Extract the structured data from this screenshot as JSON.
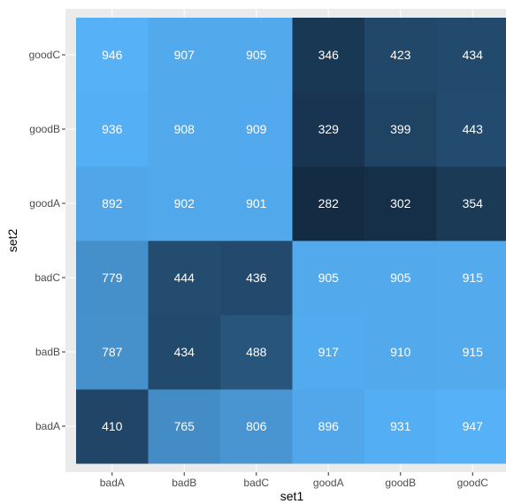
{
  "chart_data": {
    "type": "heatmap",
    "xlabel": "set1",
    "ylabel": "set2",
    "x_categories": [
      "badA",
      "badB",
      "badC",
      "goodA",
      "goodB",
      "goodC"
    ],
    "y_categories": [
      "badA",
      "badB",
      "badC",
      "goodA",
      "goodB",
      "goodC"
    ],
    "values": [
      [
        410,
        765,
        806,
        896,
        931,
        947
      ],
      [
        787,
        434,
        488,
        917,
        910,
        915
      ],
      [
        779,
        444,
        436,
        905,
        905,
        915
      ],
      [
        892,
        902,
        901,
        282,
        302,
        354
      ],
      [
        936,
        908,
        909,
        329,
        399,
        443
      ],
      [
        946,
        907,
        905,
        346,
        423,
        434
      ]
    ],
    "color_low": "#132B43",
    "color_high": "#56B1F7",
    "panel_background": "#EBEBEB",
    "gridline_color": "#FFFFFF",
    "text_color": "#FFFFFF",
    "legend": "none"
  }
}
